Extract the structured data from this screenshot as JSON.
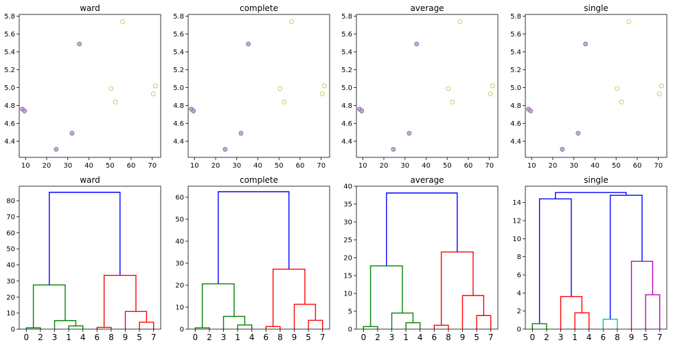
{
  "colors": {
    "purple": "#b696c8",
    "yellow": "#e8e48a",
    "green": "#008000",
    "red": "#ff0000",
    "blue": "#0000ff",
    "cyan": "#00bfbf",
    "magenta": "#bf00bf"
  },
  "chart_data": [
    {
      "type": "scatter",
      "title": "ward",
      "xlim": [
        7,
        74
      ],
      "ylim": [
        4.22,
        5.82
      ],
      "xticks": [
        "10",
        "20",
        "30",
        "40",
        "50",
        "60",
        "70"
      ],
      "yticks": [
        "4.4",
        "4.6",
        "4.8",
        "5.0",
        "5.2",
        "5.4",
        "5.6",
        "5.8"
      ],
      "points": [
        {
          "x": 8.5,
          "y": 4.76,
          "cluster": "purple"
        },
        {
          "x": 9.5,
          "y": 4.74,
          "cluster": "purple"
        },
        {
          "x": 24.5,
          "y": 4.31,
          "cluster": "purple"
        },
        {
          "x": 32,
          "y": 4.49,
          "cluster": "purple"
        },
        {
          "x": 35.5,
          "y": 5.49,
          "cluster": "purple"
        },
        {
          "x": 50.5,
          "y": 4.99,
          "cluster": "yellow"
        },
        {
          "x": 52.5,
          "y": 4.84,
          "cluster": "yellow"
        },
        {
          "x": 56,
          "y": 5.74,
          "cluster": "yellow"
        },
        {
          "x": 70.5,
          "y": 4.93,
          "cluster": "yellow"
        },
        {
          "x": 71.5,
          "y": 5.02,
          "cluster": "yellow"
        }
      ]
    },
    {
      "type": "scatter",
      "title": "complete",
      "xlim": [
        7,
        74
      ],
      "ylim": [
        4.22,
        5.82
      ],
      "xticks": [
        "10",
        "20",
        "30",
        "40",
        "50",
        "60",
        "70"
      ],
      "yticks": [
        "4.4",
        "4.6",
        "4.8",
        "5.0",
        "5.2",
        "5.4",
        "5.6",
        "5.8"
      ],
      "points": [
        {
          "x": 8.5,
          "y": 4.76,
          "cluster": "purple"
        },
        {
          "x": 9.5,
          "y": 4.74,
          "cluster": "purple"
        },
        {
          "x": 24.5,
          "y": 4.31,
          "cluster": "purple"
        },
        {
          "x": 32,
          "y": 4.49,
          "cluster": "purple"
        },
        {
          "x": 35.5,
          "y": 5.49,
          "cluster": "purple"
        },
        {
          "x": 50.5,
          "y": 4.99,
          "cluster": "yellow"
        },
        {
          "x": 52.5,
          "y": 4.84,
          "cluster": "yellow"
        },
        {
          "x": 56,
          "y": 5.74,
          "cluster": "yellow"
        },
        {
          "x": 70.5,
          "y": 4.93,
          "cluster": "yellow"
        },
        {
          "x": 71.5,
          "y": 5.02,
          "cluster": "yellow"
        }
      ]
    },
    {
      "type": "scatter",
      "title": "average",
      "xlim": [
        7,
        74
      ],
      "ylim": [
        4.22,
        5.82
      ],
      "xticks": [
        "10",
        "20",
        "30",
        "40",
        "50",
        "60",
        "70"
      ],
      "yticks": [
        "4.4",
        "4.6",
        "4.8",
        "5.0",
        "5.2",
        "5.4",
        "5.6",
        "5.8"
      ],
      "points": [
        {
          "x": 8.5,
          "y": 4.76,
          "cluster": "purple"
        },
        {
          "x": 9.5,
          "y": 4.74,
          "cluster": "purple"
        },
        {
          "x": 24.5,
          "y": 4.31,
          "cluster": "purple"
        },
        {
          "x": 32,
          "y": 4.49,
          "cluster": "purple"
        },
        {
          "x": 35.5,
          "y": 5.49,
          "cluster": "purple"
        },
        {
          "x": 50.5,
          "y": 4.99,
          "cluster": "yellow"
        },
        {
          "x": 52.5,
          "y": 4.84,
          "cluster": "yellow"
        },
        {
          "x": 56,
          "y": 5.74,
          "cluster": "yellow"
        },
        {
          "x": 70.5,
          "y": 4.93,
          "cluster": "yellow"
        },
        {
          "x": 71.5,
          "y": 5.02,
          "cluster": "yellow"
        }
      ]
    },
    {
      "type": "scatter",
      "title": "single",
      "xlim": [
        7,
        74
      ],
      "ylim": [
        4.22,
        5.82
      ],
      "xticks": [
        "10",
        "20",
        "30",
        "40",
        "50",
        "60",
        "70"
      ],
      "yticks": [
        "4.4",
        "4.6",
        "4.8",
        "5.0",
        "5.2",
        "5.4",
        "5.6",
        "5.8"
      ],
      "points": [
        {
          "x": 8.5,
          "y": 4.76,
          "cluster": "purple"
        },
        {
          "x": 9.5,
          "y": 4.74,
          "cluster": "purple"
        },
        {
          "x": 24.5,
          "y": 4.31,
          "cluster": "purple"
        },
        {
          "x": 32,
          "y": 4.49,
          "cluster": "purple"
        },
        {
          "x": 35.5,
          "y": 5.49,
          "cluster": "purple"
        },
        {
          "x": 50.5,
          "y": 4.99,
          "cluster": "yellow"
        },
        {
          "x": 52.5,
          "y": 4.84,
          "cluster": "yellow"
        },
        {
          "x": 56,
          "y": 5.74,
          "cluster": "yellow"
        },
        {
          "x": 70.5,
          "y": 4.93,
          "cluster": "yellow"
        },
        {
          "x": 71.5,
          "y": 5.02,
          "cluster": "yellow"
        }
      ]
    },
    {
      "type": "dendrogram",
      "title": "ward",
      "leaves": [
        "0",
        "2",
        "3",
        "1",
        "4",
        "6",
        "8",
        "9",
        "5",
        "7"
      ],
      "ylim": [
        0,
        89
      ],
      "yticks": [
        0,
        10,
        20,
        30,
        40,
        50,
        60,
        70,
        80
      ],
      "links": [
        {
          "xs": [
            0,
            1
          ],
          "lh": [
            0,
            0
          ],
          "h": 0.8,
          "color": "green"
        },
        {
          "xs": [
            3,
            4
          ],
          "lh": [
            0,
            0
          ],
          "h": 2.0,
          "color": "green"
        },
        {
          "xs": [
            2,
            3.5
          ],
          "lh": [
            0,
            2.0
          ],
          "h": 5.3,
          "color": "green"
        },
        {
          "xs": [
            0.5,
            2.75
          ],
          "lh": [
            0.8,
            5.3
          ],
          "h": 27.5,
          "color": "green"
        },
        {
          "xs": [
            5,
            6
          ],
          "lh": [
            0,
            0
          ],
          "h": 1.1,
          "color": "red"
        },
        {
          "xs": [
            8,
            9
          ],
          "lh": [
            0,
            0
          ],
          "h": 4.3,
          "color": "red"
        },
        {
          "xs": [
            7,
            8.5
          ],
          "lh": [
            0,
            4.3
          ],
          "h": 11.0,
          "color": "red"
        },
        {
          "xs": [
            5.5,
            7.75
          ],
          "lh": [
            1.1,
            11.0
          ],
          "h": 33.5,
          "color": "red"
        },
        {
          "xs": [
            1.625,
            6.625
          ],
          "lh": [
            27.5,
            33.5
          ],
          "h": 85.2,
          "color": "blue"
        }
      ]
    },
    {
      "type": "dendrogram",
      "title": "complete",
      "leaves": [
        "0",
        "2",
        "3",
        "1",
        "4",
        "6",
        "8",
        "9",
        "5",
        "7"
      ],
      "ylim": [
        0,
        65
      ],
      "yticks": [
        0,
        10,
        20,
        30,
        40,
        50,
        60
      ],
      "links": [
        {
          "xs": [
            0,
            1
          ],
          "lh": [
            0,
            0
          ],
          "h": 0.6,
          "color": "green"
        },
        {
          "xs": [
            3,
            4
          ],
          "lh": [
            0,
            0
          ],
          "h": 1.9,
          "color": "green"
        },
        {
          "xs": [
            2,
            3.5
          ],
          "lh": [
            0,
            1.9
          ],
          "h": 5.8,
          "color": "green"
        },
        {
          "xs": [
            0.5,
            2.75
          ],
          "lh": [
            0.6,
            5.8
          ],
          "h": 20.6,
          "color": "green"
        },
        {
          "xs": [
            5,
            6
          ],
          "lh": [
            0,
            0
          ],
          "h": 1.2,
          "color": "red"
        },
        {
          "xs": [
            8,
            9
          ],
          "lh": [
            0,
            0
          ],
          "h": 4.0,
          "color": "red"
        },
        {
          "xs": [
            7,
            8.5
          ],
          "lh": [
            0,
            4.0
          ],
          "h": 11.3,
          "color": "red"
        },
        {
          "xs": [
            5.5,
            7.75
          ],
          "lh": [
            1.2,
            11.3
          ],
          "h": 27.3,
          "color": "red"
        },
        {
          "xs": [
            1.625,
            6.625
          ],
          "lh": [
            20.6,
            27.3
          ],
          "h": 62.5,
          "color": "blue"
        }
      ]
    },
    {
      "type": "dendrogram",
      "title": "average",
      "leaves": [
        "0",
        "2",
        "3",
        "1",
        "4",
        "6",
        "8",
        "9",
        "5",
        "7"
      ],
      "ylim": [
        0,
        40
      ],
      "yticks": [
        0,
        5,
        10,
        15,
        20,
        25,
        30,
        35,
        40
      ],
      "links": [
        {
          "xs": [
            0,
            1
          ],
          "lh": [
            0,
            0
          ],
          "h": 0.7,
          "color": "green"
        },
        {
          "xs": [
            3,
            4
          ],
          "lh": [
            0,
            0
          ],
          "h": 1.8,
          "color": "green"
        },
        {
          "xs": [
            2,
            3.5
          ],
          "lh": [
            0,
            1.8
          ],
          "h": 4.5,
          "color": "green"
        },
        {
          "xs": [
            0.5,
            2.75
          ],
          "lh": [
            0.7,
            4.5
          ],
          "h": 17.7,
          "color": "green"
        },
        {
          "xs": [
            5,
            6
          ],
          "lh": [
            0,
            0
          ],
          "h": 1.1,
          "color": "red"
        },
        {
          "xs": [
            8,
            9
          ],
          "lh": [
            0,
            0
          ],
          "h": 3.8,
          "color": "red"
        },
        {
          "xs": [
            7,
            8.5
          ],
          "lh": [
            0,
            3.8
          ],
          "h": 9.4,
          "color": "red"
        },
        {
          "xs": [
            5.5,
            7.75
          ],
          "lh": [
            1.1,
            9.4
          ],
          "h": 21.6,
          "color": "red"
        },
        {
          "xs": [
            1.625,
            6.625
          ],
          "lh": [
            17.7,
            21.6
          ],
          "h": 38.1,
          "color": "blue"
        }
      ]
    },
    {
      "type": "dendrogram",
      "title": "single",
      "leaves": [
        "0",
        "2",
        "3",
        "1",
        "4",
        "6",
        "8",
        "9",
        "5",
        "7"
      ],
      "ylim": [
        0,
        15.8
      ],
      "yticks": [
        0,
        2,
        4,
        6,
        8,
        10,
        12,
        14
      ],
      "links": [
        {
          "xs": [
            0,
            1
          ],
          "lh": [
            0,
            0
          ],
          "h": 0.6,
          "color": "green"
        },
        {
          "xs": [
            3,
            4
          ],
          "lh": [
            0,
            0
          ],
          "h": 1.8,
          "color": "red"
        },
        {
          "xs": [
            2,
            3.5
          ],
          "lh": [
            0,
            1.8
          ],
          "h": 3.6,
          "color": "red"
        },
        {
          "xs": [
            0.5,
            2.75
          ],
          "lh": [
            0.6,
            3.6
          ],
          "h": 14.4,
          "color": "blue"
        },
        {
          "xs": [
            5,
            6
          ],
          "lh": [
            0,
            0
          ],
          "h": 1.1,
          "color": "cyan"
        },
        {
          "xs": [
            8,
            9
          ],
          "lh": [
            0,
            0
          ],
          "h": 3.8,
          "color": "magenta"
        },
        {
          "xs": [
            7,
            8.5
          ],
          "lh": [
            0,
            3.8
          ],
          "h": 7.5,
          "color": "magenta"
        },
        {
          "xs": [
            5.5,
            7.75
          ],
          "lh": [
            1.1,
            7.5
          ],
          "h": 14.8,
          "color": "blue"
        },
        {
          "xs": [
            1.625,
            6.625
          ],
          "lh": [
            14.4,
            14.8
          ],
          "h": 15.1,
          "color": "blue"
        }
      ]
    }
  ]
}
